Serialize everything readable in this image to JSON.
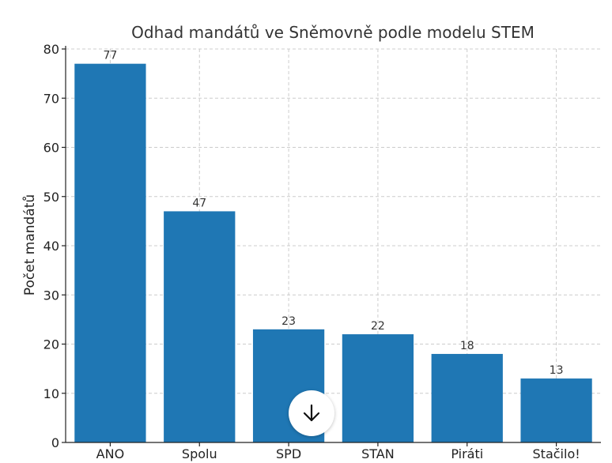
{
  "chart_data": {
    "type": "bar",
    "title": "Odhad mandátů ve Sněmovně podle modelu STEM",
    "xlabel": "",
    "ylabel": "Počet mandátů",
    "categories": [
      "ANO",
      "Spolu",
      "SPD",
      "STAN",
      "Piráti",
      "Stačilo!"
    ],
    "values": [
      77,
      47,
      23,
      22,
      18,
      13
    ],
    "ylim": [
      0,
      80
    ],
    "yticks": [
      0,
      10,
      20,
      30,
      40,
      50,
      60,
      70,
      80
    ],
    "grid": true,
    "bar_color": "#1f77b4"
  },
  "ui": {
    "scroll_button_icon": "arrow-down-icon"
  }
}
